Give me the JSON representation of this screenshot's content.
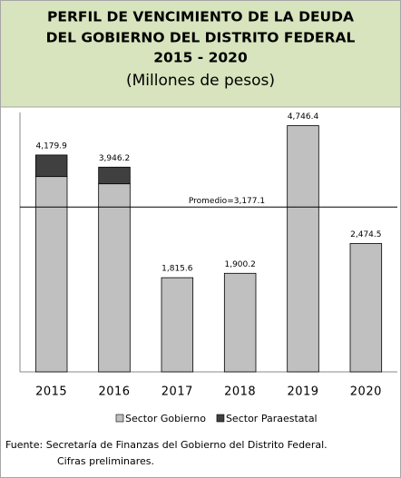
{
  "chart_data": {
    "type": "stacked_bar",
    "title": [
      "PERFIL DE VENCIMIENTO DE LA DEUDA",
      "DEL GOBIERNO DEL DISTRITO FEDERAL",
      "2015 - 2020"
    ],
    "subtitle": "(Millones de pesos)",
    "categories": [
      "2015",
      "2016",
      "2017",
      "2018",
      "2019",
      "2020"
    ],
    "series": [
      {
        "name": "Sector Gobierno",
        "color": "#c0c0c0",
        "values": [
          3765,
          3625,
          1815.6,
          1900.2,
          4746.4,
          2474.5
        ]
      },
      {
        "name": "Sector Paraestatal",
        "color": "#404040",
        "values": [
          414.9,
          321.2,
          0,
          0,
          0,
          0
        ]
      }
    ],
    "total_labels": [
      "4,179.9",
      "3,946.2",
      "1,815.6",
      "1,900.2",
      "4,746.4",
      "2,474.5"
    ],
    "average": 3177.1,
    "average_label": "Promedio=3,177.1",
    "ylim": [
      0,
      5000
    ],
    "source": [
      "Fuente: Secretaría de Finanzas del Gobierno del Distrito Federal.",
      "Cifras preliminares."
    ]
  }
}
